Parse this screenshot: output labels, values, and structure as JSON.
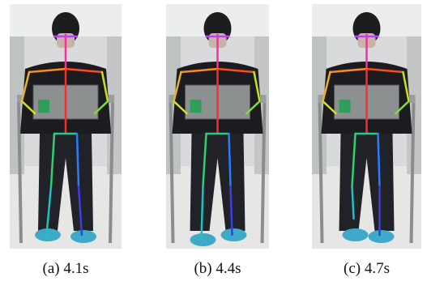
{
  "panels": [
    {
      "caption": "(a) 4.1s"
    },
    {
      "caption": "(b) 4.4s"
    },
    {
      "caption": "(c) 4.7s"
    }
  ]
}
